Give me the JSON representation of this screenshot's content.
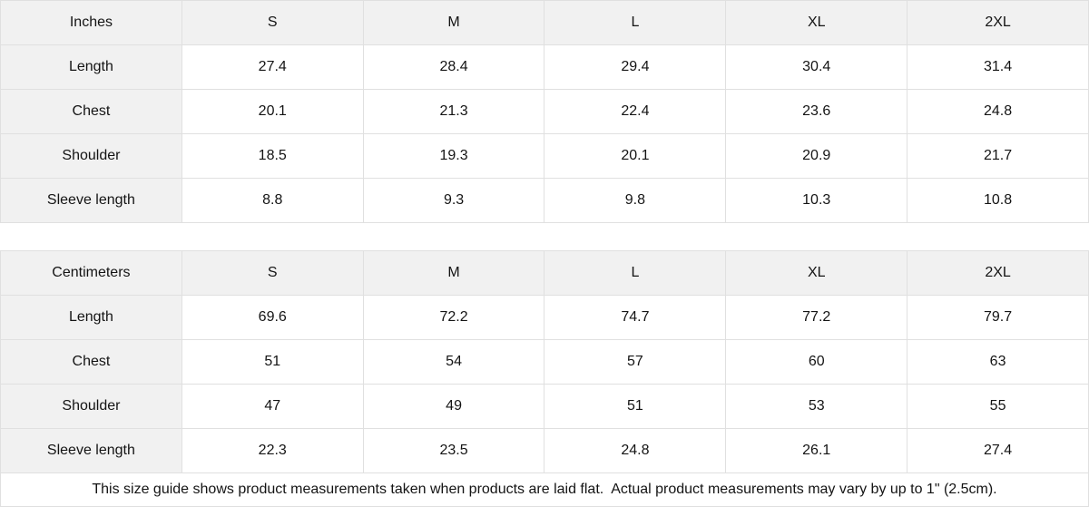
{
  "colors": {
    "header_background": "#f1f1f1",
    "border": "#e0e0e0",
    "text": "#141414",
    "cell_background": "#ffffff"
  },
  "tables": [
    {
      "unit": "Inches",
      "sizes": [
        "S",
        "M",
        "L",
        "XL",
        "2XL"
      ],
      "rows": [
        {
          "label": "Length",
          "values": [
            "27.4",
            "28.4",
            "29.4",
            "30.4",
            "31.4"
          ]
        },
        {
          "label": "Chest",
          "values": [
            "20.1",
            "21.3",
            "22.4",
            "23.6",
            "24.8"
          ]
        },
        {
          "label": "Shoulder",
          "values": [
            "18.5",
            "19.3",
            "20.1",
            "20.9",
            "21.7"
          ]
        },
        {
          "label": "Sleeve length",
          "values": [
            "8.8",
            "9.3",
            "9.8",
            "10.3",
            "10.8"
          ]
        }
      ]
    },
    {
      "unit": "Centimeters",
      "sizes": [
        "S",
        "M",
        "L",
        "XL",
        "2XL"
      ],
      "rows": [
        {
          "label": "Length",
          "values": [
            "69.6",
            "72.2",
            "74.7",
            "77.2",
            "79.7"
          ]
        },
        {
          "label": "Chest",
          "values": [
            "51",
            "54",
            "57",
            "60",
            "63"
          ]
        },
        {
          "label": "Shoulder",
          "values": [
            "47",
            "49",
            "51",
            "53",
            "55"
          ]
        },
        {
          "label": "Sleeve length",
          "values": [
            "22.3",
            "23.5",
            "24.8",
            "26.1",
            "27.4"
          ]
        }
      ]
    }
  ],
  "footer": {
    "note": "This size guide shows product measurements taken when products are laid flat.  Actual product measurements may vary by up to 1\" (2.5cm)."
  },
  "chart_data": [
    {
      "type": "table",
      "title": "Inches",
      "columns": [
        "Inches",
        "S",
        "M",
        "L",
        "XL",
        "2XL"
      ],
      "rows": [
        [
          "Length",
          27.4,
          28.4,
          29.4,
          30.4,
          31.4
        ],
        [
          "Chest",
          20.1,
          21.3,
          22.4,
          23.6,
          24.8
        ],
        [
          "Shoulder",
          18.5,
          19.3,
          20.1,
          20.9,
          21.7
        ],
        [
          "Sleeve length",
          8.8,
          9.3,
          9.8,
          10.3,
          10.8
        ]
      ]
    },
    {
      "type": "table",
      "title": "Centimeters",
      "columns": [
        "Centimeters",
        "S",
        "M",
        "L",
        "XL",
        "2XL"
      ],
      "rows": [
        [
          "Length",
          69.6,
          72.2,
          74.7,
          77.2,
          79.7
        ],
        [
          "Chest",
          51,
          54,
          57,
          60,
          63
        ],
        [
          "Shoulder",
          47,
          49,
          51,
          53,
          55
        ],
        [
          "Sleeve length",
          22.3,
          23.5,
          24.8,
          26.1,
          27.4
        ]
      ]
    }
  ]
}
